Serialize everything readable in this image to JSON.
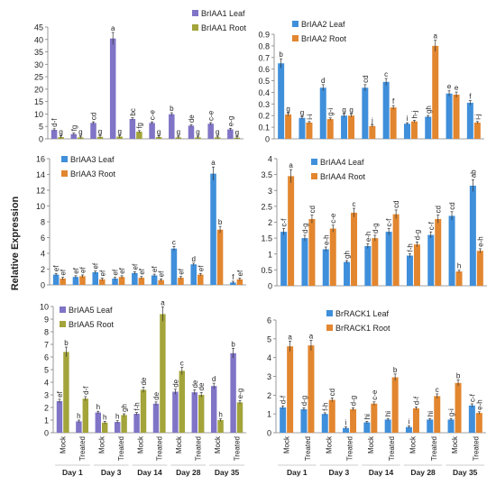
{
  "figure": {
    "ylabel": "Relative Expression"
  },
  "colors": {
    "leaf": "#3f8fdb",
    "root": "#e2862f",
    "leaf_alt": "#7f74c6",
    "root_alt": "#a3a43a",
    "axis": "#808080",
    "text": "#222222"
  },
  "chart_data": [
    {
      "type": "bar",
      "title": "",
      "xlabel": "",
      "ylabel": "",
      "ylim": [
        0,
        45
      ],
      "yticks": [
        "0",
        "5",
        "10",
        "15",
        "20",
        "25",
        "30",
        "35",
        "40",
        "45"
      ],
      "categories": [
        "Mock",
        "Treated",
        "Mock",
        "Treated",
        "Mock",
        "Treated",
        "Mock",
        "Treated",
        "Mock",
        "Treated"
      ],
      "series": [
        {
          "name": "BrIAA1 Leaf",
          "values": [
            3.6,
            1.9,
            6.4,
            40.4,
            8.0,
            6.4,
            9.9,
            5.3,
            6.1,
            3.8
          ],
          "letters": [
            "d-f",
            "fg",
            "cd",
            "a",
            "bc",
            "c-e",
            "b",
            "de",
            "c-e",
            "e-g"
          ]
        },
        {
          "name": "BrIAA1 Root",
          "values": [
            0.7,
            0.6,
            0.8,
            0.9,
            2.9,
            0.7,
            0.6,
            0.6,
            0.6,
            0.5
          ],
          "letters": [
            "g",
            "g",
            "g",
            "g",
            "fg",
            "g",
            "g",
            "g",
            "g",
            "g"
          ]
        }
      ]
    },
    {
      "type": "bar",
      "title": "",
      "xlabel": "",
      "ylabel": "",
      "ylim": [
        0,
        0.9
      ],
      "yticks": [
        "0",
        "0.1",
        "0.2",
        "0.3",
        "0.4",
        "0.5",
        "0.6",
        "0.7",
        "0.8",
        "0.9"
      ],
      "categories": [
        "Mock",
        "Treated",
        "Mock",
        "Treated",
        "Mock",
        "Treated",
        "Mock",
        "Treated",
        "Mock",
        "Treated"
      ],
      "series": [
        {
          "name": "BrIAA2 Leaf",
          "values": [
            0.65,
            0.18,
            0.44,
            0.2,
            0.44,
            0.49,
            0.13,
            0.19,
            0.39,
            0.31
          ],
          "letters": [
            "b",
            "g",
            "d",
            "g",
            "cd",
            "c",
            "i",
            "gh",
            "e",
            "f"
          ]
        },
        {
          "name": "BrIAA2 Root",
          "values": [
            0.21,
            0.14,
            0.17,
            0.2,
            0.11,
            0.27,
            0.15,
            0.8,
            0.38,
            0.14
          ],
          "letters": [
            "g",
            "i-i",
            "g-i",
            "g",
            "j",
            "f",
            "h-j",
            "a",
            "e",
            "i-j"
          ]
        }
      ]
    },
    {
      "type": "bar",
      "title": "",
      "xlabel": "",
      "ylabel": "",
      "ylim": [
        0,
        16
      ],
      "yticks": [
        "0",
        "2",
        "4",
        "6",
        "8",
        "10",
        "12",
        "14",
        "16"
      ],
      "categories": [
        "Mock",
        "Treated",
        "Mock",
        "Treated",
        "Mock",
        "Treated",
        "Mock",
        "Treated",
        "Mock",
        "Treated"
      ],
      "series": [
        {
          "name": "BrIAA3 Leaf",
          "values": [
            1.3,
            1.0,
            1.6,
            0.8,
            1.5,
            1.2,
            4.6,
            2.6,
            14.1,
            0.3
          ],
          "letters": [
            "ef",
            "ef",
            "ef",
            "ef",
            "ef",
            "ef",
            "c",
            "d",
            "a",
            "f"
          ]
        },
        {
          "name": "BrIAA3 Root",
          "values": [
            0.8,
            1.1,
            0.7,
            1.0,
            0.9,
            0.6,
            0.9,
            1.3,
            7.0,
            0.7
          ],
          "letters": [
            "ef",
            "ef",
            "ef",
            "ef",
            "ef",
            "ef",
            "ef",
            "ef",
            "b",
            "ef"
          ]
        }
      ]
    },
    {
      "type": "bar",
      "title": "",
      "xlabel": "",
      "ylabel": "",
      "ylim": [
        0,
        4
      ],
      "yticks": [
        "0",
        "0.5",
        "1",
        "1.5",
        "2",
        "2.5",
        "3",
        "3.5",
        "4"
      ],
      "categories": [
        "Mock",
        "Treated",
        "Mock",
        "Treated",
        "Mock",
        "Treated",
        "Mock",
        "Treated",
        "Mock",
        "Treated"
      ],
      "series": [
        {
          "name": "BrIAA4 Leaf",
          "values": [
            1.7,
            1.5,
            1.15,
            0.75,
            1.25,
            1.7,
            0.95,
            1.6,
            2.2,
            3.15
          ],
          "letters": [
            "c-f",
            "d-g",
            "e-h",
            "gh",
            "e-h",
            "c-f",
            "f-h",
            "c-f",
            "cd",
            "ab"
          ]
        },
        {
          "name": "BrIAA4 Root",
          "values": [
            3.45,
            2.1,
            1.8,
            2.3,
            1.5,
            2.25,
            1.3,
            2.1,
            0.45,
            1.1
          ],
          "letters": [
            "a",
            "cd",
            "c-e",
            "c",
            "d-g",
            "cd",
            "d-g",
            "cd",
            "h",
            "e-h"
          ]
        }
      ]
    },
    {
      "type": "bar",
      "title": "",
      "xlabel": "",
      "ylabel": "",
      "ylim": [
        0,
        10
      ],
      "yticks": [
        "0",
        "1",
        "2",
        "3",
        "4",
        "5",
        "6",
        "7",
        "8",
        "9",
        "10"
      ],
      "categories": [
        "Mock",
        "Treated",
        "Mock",
        "Treated",
        "Mock",
        "Treated",
        "Mock",
        "Treated",
        "Mock",
        "Treated"
      ],
      "series": [
        {
          "name": "BrIAA5 Leaf",
          "values": [
            2.5,
            0.9,
            1.6,
            0.85,
            1.5,
            2.3,
            3.25,
            3.2,
            3.7,
            6.3
          ],
          "letters": [
            "ef",
            "h",
            "h",
            "h",
            "f-h",
            "de",
            "de",
            "de",
            "d",
            "b"
          ]
        },
        {
          "name": "BrIAA5 Root",
          "values": [
            6.4,
            2.7,
            0.8,
            1.4,
            3.4,
            9.4,
            4.9,
            3.0,
            1.0,
            2.4
          ],
          "letters": [
            "b",
            "d-f",
            "h",
            "gh",
            "de",
            "a",
            "c",
            "de",
            "h",
            "e-g"
          ]
        }
      ]
    },
    {
      "type": "bar",
      "title": "",
      "xlabel": "",
      "ylabel": "",
      "ylim": [
        0,
        6
      ],
      "yticks": [
        "0",
        "1",
        "2",
        "3",
        "4",
        "5",
        "6"
      ],
      "categories": [
        "Mock",
        "Treated",
        "Mock",
        "Treated",
        "Mock",
        "Treated",
        "Mock",
        "Treated",
        "Mock",
        "Treated"
      ],
      "series": [
        {
          "name": "BrRACK1 Leaf",
          "values": [
            1.35,
            1.25,
            1.0,
            0.25,
            0.55,
            0.7,
            0.3,
            0.7,
            0.7,
            1.45
          ],
          "letters": [
            "d-f",
            "d-g",
            "f-h",
            "i",
            "hi",
            "hi",
            "i",
            "hi",
            "g-i",
            "c-f"
          ]
        },
        {
          "name": "BrRACK1 Root",
          "values": [
            4.6,
            4.65,
            1.75,
            1.25,
            1.55,
            2.95,
            1.3,
            1.95,
            2.65,
            1.05
          ],
          "letters": [
            "a",
            "a",
            "cd",
            "d-g",
            "c-e",
            "b",
            "d-f",
            "c",
            "b",
            "e-h"
          ]
        }
      ]
    }
  ],
  "days_left": [
    "Day 1",
    "Day 3",
    "Day 14",
    "Day 28",
    "Day 35"
  ],
  "days_right": [
    "Day 1",
    "Day 3",
    "Day 14",
    "Day 28",
    "Day 35"
  ]
}
